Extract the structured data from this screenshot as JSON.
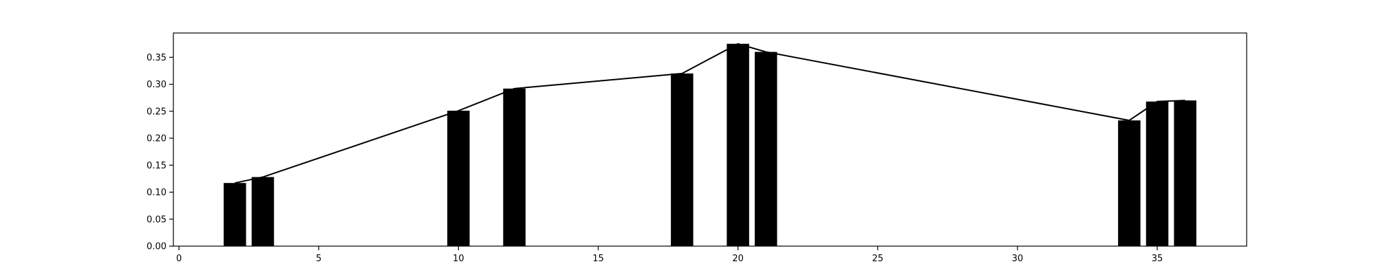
{
  "chart_data": {
    "type": "bar",
    "title": "",
    "xlabel": "",
    "ylabel": "",
    "xlim": [
      -0.2,
      38.2
    ],
    "ylim": [
      0,
      0.395
    ],
    "x_ticks": [
      0,
      5,
      10,
      15,
      20,
      25,
      30,
      35
    ],
    "x_tick_labels": [
      "0",
      "5",
      "10",
      "15",
      "20",
      "25",
      "30",
      "35"
    ],
    "y_ticks": [
      0,
      0.05,
      0.1,
      0.15,
      0.2,
      0.25,
      0.3,
      0.35
    ],
    "y_tick_labels": [
      "0.00",
      "0.05",
      "0.10",
      "0.15",
      "0.20",
      "0.25",
      "0.30",
      "0.35"
    ],
    "grid": false,
    "bar_width": 0.8,
    "bars": {
      "x": [
        2,
        3,
        10,
        12,
        18,
        20,
        21,
        34,
        35,
        36
      ],
      "values": [
        0.117,
        0.128,
        0.251,
        0.292,
        0.32,
        0.375,
        0.36,
        0.233,
        0.268,
        0.27
      ]
    },
    "line": {
      "x": [
        2,
        3,
        10,
        12,
        18,
        20,
        21,
        34,
        35,
        36
      ],
      "values": [
        0.117,
        0.128,
        0.251,
        0.292,
        0.32,
        0.375,
        0.36,
        0.233,
        0.268,
        0.27
      ]
    },
    "colors": {
      "bar": "#000000",
      "line": "#000000",
      "axis": "#000000",
      "background": "#ffffff"
    }
  }
}
